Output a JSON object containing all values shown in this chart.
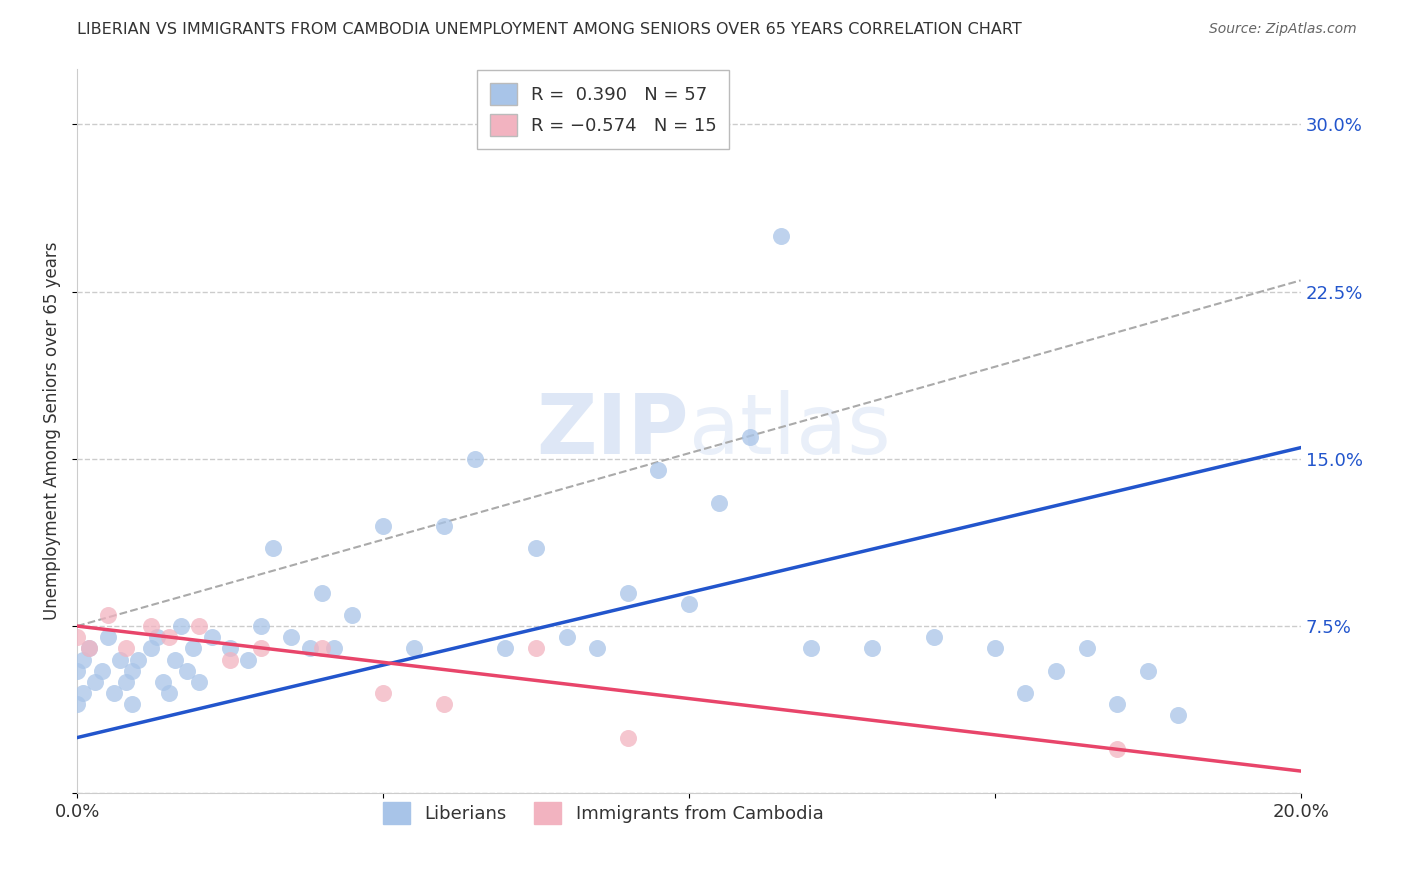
{
  "title": "LIBERIAN VS IMMIGRANTS FROM CAMBODIA UNEMPLOYMENT AMONG SENIORS OVER 65 YEARS CORRELATION CHART",
  "source": "Source: ZipAtlas.com",
  "ylabel": "Unemployment Among Seniors over 65 years",
  "xlim": [
    0.0,
    0.2
  ],
  "ylim": [
    0.0,
    0.325
  ],
  "yticks": [
    0.0,
    0.075,
    0.15,
    0.225,
    0.3
  ],
  "ytick_labels_right": [
    "",
    "7.5%",
    "15.0%",
    "22.5%",
    "30.0%"
  ],
  "xticks": [
    0.0,
    0.05,
    0.1,
    0.15,
    0.2
  ],
  "xtick_labels": [
    "0.0%",
    "",
    "",
    "",
    "20.0%"
  ],
  "R_blue": 0.39,
  "N_blue": 57,
  "R_pink": -0.574,
  "N_pink": 15,
  "blue_color": "#a8c4e8",
  "pink_color": "#f2b3c0",
  "blue_line_color": "#2255cc",
  "pink_line_color": "#e8456a",
  "gray_dash_color": "#aaaaaa",
  "watermark_color": "#c8d8f0",
  "blue_scatter_x": [
    0.0,
    0.0,
    0.001,
    0.001,
    0.002,
    0.003,
    0.004,
    0.005,
    0.006,
    0.007,
    0.008,
    0.009,
    0.009,
    0.01,
    0.012,
    0.013,
    0.014,
    0.015,
    0.016,
    0.017,
    0.018,
    0.019,
    0.02,
    0.022,
    0.025,
    0.028,
    0.03,
    0.032,
    0.035,
    0.038,
    0.04,
    0.042,
    0.045,
    0.05,
    0.055,
    0.06,
    0.065,
    0.07,
    0.075,
    0.08,
    0.085,
    0.09,
    0.095,
    0.1,
    0.105,
    0.11,
    0.115,
    0.12,
    0.13,
    0.14,
    0.15,
    0.155,
    0.16,
    0.165,
    0.17,
    0.175,
    0.18
  ],
  "blue_scatter_y": [
    0.055,
    0.04,
    0.045,
    0.06,
    0.065,
    0.05,
    0.055,
    0.07,
    0.045,
    0.06,
    0.05,
    0.04,
    0.055,
    0.06,
    0.065,
    0.07,
    0.05,
    0.045,
    0.06,
    0.075,
    0.055,
    0.065,
    0.05,
    0.07,
    0.065,
    0.06,
    0.075,
    0.11,
    0.07,
    0.065,
    0.09,
    0.065,
    0.08,
    0.12,
    0.065,
    0.12,
    0.15,
    0.065,
    0.11,
    0.07,
    0.065,
    0.09,
    0.145,
    0.085,
    0.13,
    0.16,
    0.25,
    0.065,
    0.065,
    0.07,
    0.065,
    0.045,
    0.055,
    0.065,
    0.04,
    0.055,
    0.035
  ],
  "pink_scatter_x": [
    0.0,
    0.002,
    0.005,
    0.008,
    0.012,
    0.015,
    0.02,
    0.025,
    0.03,
    0.04,
    0.05,
    0.06,
    0.075,
    0.09,
    0.17
  ],
  "pink_scatter_y": [
    0.07,
    0.065,
    0.08,
    0.065,
    0.075,
    0.07,
    0.075,
    0.06,
    0.065,
    0.065,
    0.045,
    0.04,
    0.065,
    0.025,
    0.02
  ],
  "blue_line_x0": 0.0,
  "blue_line_x1": 0.2,
  "blue_line_y0": 0.025,
  "blue_line_y1": 0.155,
  "pink_line_x0": 0.0,
  "pink_line_x1": 0.2,
  "pink_line_y0": 0.075,
  "pink_line_y1": 0.01,
  "gray_line_x0": 0.0,
  "gray_line_x1": 0.2,
  "gray_line_y0": 0.075,
  "gray_line_y1": 0.23
}
